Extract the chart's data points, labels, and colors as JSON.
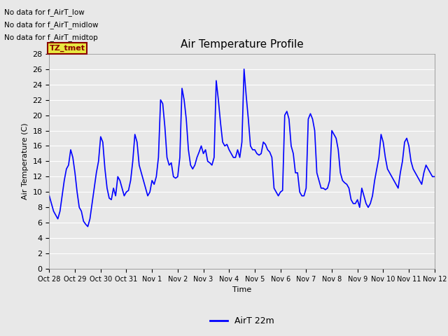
{
  "title": "Air Temperature Profile",
  "xlabel": "Time",
  "ylabel": "Air Temperature (C)",
  "ylim": [
    0,
    28
  ],
  "yticks": [
    0,
    2,
    4,
    6,
    8,
    10,
    12,
    14,
    16,
    18,
    20,
    22,
    24,
    26,
    28
  ],
  "line_color": "blue",
  "line_width": 1.2,
  "background_color": "#e8e8e8",
  "annotation_text": "TZ_tmet",
  "x_tick_labels": [
    "Oct 28",
    "Oct 29",
    "Oct 30",
    "Oct 31",
    "Nov 1",
    "Nov 2",
    "Nov 3",
    "Nov 4",
    "Nov 5",
    "Nov 6",
    "Nov 7",
    "Nov 8",
    "Nov 9",
    "Nov 10",
    "Nov 11",
    "Nov 12"
  ],
  "x_tick_positions": [
    0,
    1,
    2,
    3,
    4,
    5,
    6,
    7,
    8,
    9,
    10,
    11,
    12,
    13,
    14,
    15
  ],
  "no_data_labels": [
    "No data for f_AirT_low",
    "No data for f_AirT_midlow",
    "No data for f_AirT_midtop"
  ],
  "time_values": [
    0.0,
    0.083,
    0.167,
    0.25,
    0.333,
    0.417,
    0.5,
    0.583,
    0.667,
    0.75,
    0.833,
    0.917,
    1.0,
    1.083,
    1.167,
    1.25,
    1.333,
    1.417,
    1.5,
    1.583,
    1.667,
    1.75,
    1.833,
    1.917,
    2.0,
    2.083,
    2.167,
    2.25,
    2.333,
    2.417,
    2.5,
    2.583,
    2.667,
    2.75,
    2.833,
    2.917,
    3.0,
    3.083,
    3.167,
    3.25,
    3.333,
    3.417,
    3.5,
    3.583,
    3.667,
    3.75,
    3.833,
    3.917,
    4.0,
    4.083,
    4.167,
    4.25,
    4.333,
    4.417,
    4.5,
    4.583,
    4.667,
    4.75,
    4.833,
    4.917,
    5.0,
    5.083,
    5.167,
    5.25,
    5.333,
    5.417,
    5.5,
    5.583,
    5.667,
    5.75,
    5.833,
    5.917,
    6.0,
    6.083,
    6.167,
    6.25,
    6.333,
    6.417,
    6.5,
    6.583,
    6.667,
    6.75,
    6.833,
    6.917,
    7.0,
    7.083,
    7.167,
    7.25,
    7.333,
    7.417,
    7.5,
    7.583,
    7.667,
    7.75,
    7.833,
    7.917,
    8.0,
    8.083,
    8.167,
    8.25,
    8.333,
    8.417,
    8.5,
    8.583,
    8.667,
    8.75,
    8.833,
    8.917,
    9.0,
    9.083,
    9.167,
    9.25,
    9.333,
    9.417,
    9.5,
    9.583,
    9.667,
    9.75,
    9.833,
    9.917,
    10.0,
    10.083,
    10.167,
    10.25,
    10.333,
    10.417,
    10.5,
    10.583,
    10.667,
    10.75,
    10.833,
    10.917,
    11.0,
    11.083,
    11.167,
    11.25,
    11.333,
    11.417,
    11.5,
    11.583,
    11.667,
    11.75,
    11.833,
    11.917,
    12.0,
    12.083,
    12.167,
    12.25,
    12.333,
    12.417,
    12.5,
    12.583,
    12.667,
    12.75,
    12.833,
    12.917,
    13.0,
    13.083,
    13.167,
    13.25,
    13.333,
    13.417,
    13.5,
    13.583,
    13.667,
    13.75,
    13.833,
    13.917,
    14.0,
    14.083,
    14.167,
    14.25,
    14.333,
    14.417,
    14.5,
    14.583,
    14.667,
    14.75,
    14.833,
    14.917,
    15.0
  ],
  "temp_values": [
    9.5,
    8.5,
    7.5,
    7.0,
    6.5,
    7.5,
    9.5,
    11.5,
    13.0,
    13.5,
    15.5,
    14.5,
    12.5,
    10.0,
    8.0,
    7.5,
    6.2,
    5.8,
    5.5,
    6.5,
    8.5,
    10.5,
    12.5,
    14.0,
    17.2,
    16.5,
    13.0,
    10.5,
    9.2,
    9.0,
    10.5,
    9.5,
    12.0,
    11.5,
    10.5,
    9.5,
    10.0,
    10.2,
    11.5,
    14.0,
    17.5,
    16.5,
    13.5,
    12.5,
    11.5,
    10.5,
    9.5,
    10.0,
    11.5,
    11.0,
    12.0,
    14.5,
    22.0,
    21.5,
    18.5,
    14.5,
    13.5,
    13.8,
    12.0,
    11.8,
    12.0,
    14.5,
    23.5,
    22.0,
    19.5,
    15.5,
    13.5,
    13.0,
    13.5,
    14.5,
    15.2,
    16.0,
    15.0,
    15.5,
    14.0,
    13.8,
    13.5,
    14.5,
    24.5,
    22.0,
    19.0,
    16.5,
    16.0,
    16.2,
    15.5,
    15.0,
    14.5,
    14.5,
    15.5,
    14.5,
    16.5,
    26.0,
    22.5,
    19.5,
    16.0,
    15.5,
    15.5,
    15.0,
    14.8,
    15.0,
    16.5,
    16.2,
    15.5,
    15.2,
    14.5,
    10.5,
    10.0,
    9.5,
    10.0,
    10.2,
    20.0,
    20.5,
    19.5,
    16.0,
    15.0,
    12.5,
    12.5,
    10.0,
    9.5,
    9.5,
    10.5,
    19.5,
    20.2,
    19.5,
    18.0,
    12.5,
    11.5,
    10.5,
    10.5,
    10.3,
    10.5,
    11.5,
    18.0,
    17.5,
    17.0,
    15.5,
    12.5,
    11.5,
    11.2,
    11.0,
    10.5,
    9.0,
    8.5,
    8.5,
    9.0,
    8.0,
    10.5,
    9.5,
    8.5,
    8.0,
    8.5,
    9.5,
    11.5,
    13.0,
    14.5,
    17.5,
    16.5,
    14.5,
    13.0,
    12.5,
    12.0,
    11.5,
    11.0,
    10.5,
    12.5,
    14.0,
    16.5,
    17.0,
    16.0,
    14.0,
    13.0,
    12.5,
    12.0,
    11.5,
    11.0,
    12.5,
    13.5,
    13.0,
    12.5,
    12.0,
    12.0
  ]
}
